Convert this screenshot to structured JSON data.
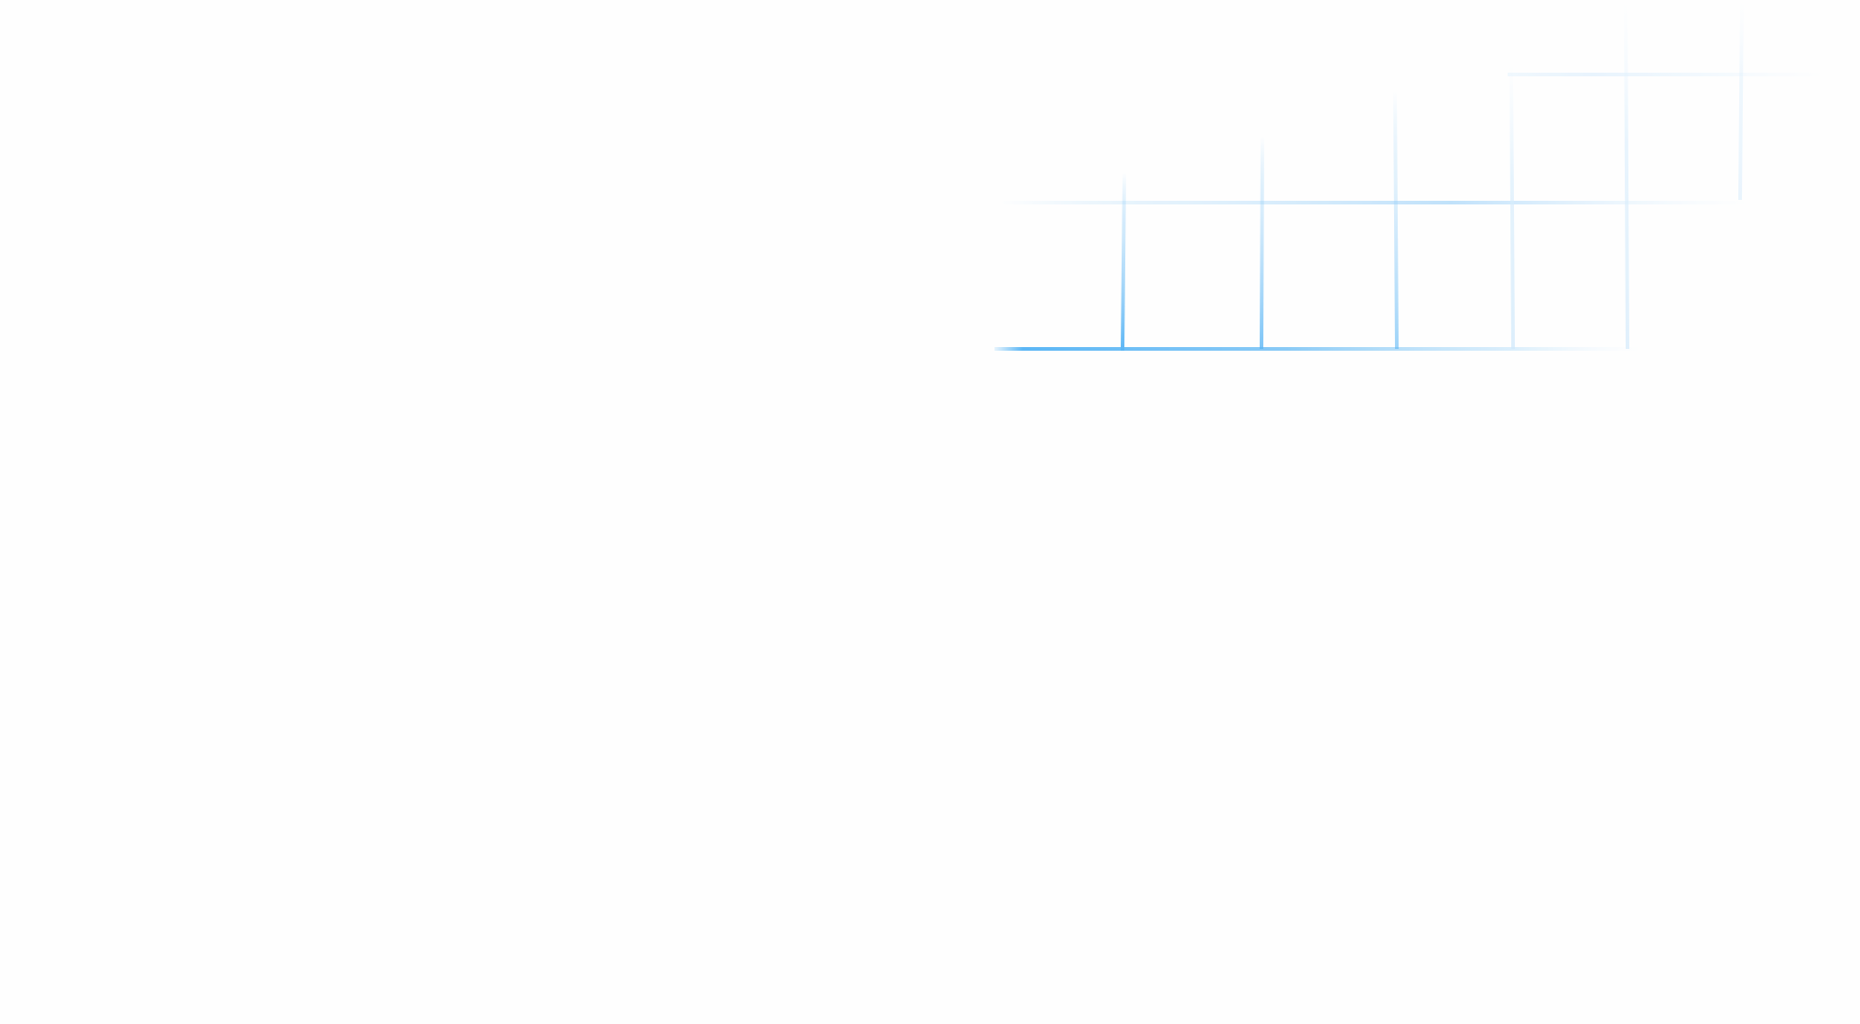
{
  "background": {
    "color": "#fefefe",
    "decoration": "faded-blue-grid",
    "accent_color": "#5bb6f5"
  }
}
